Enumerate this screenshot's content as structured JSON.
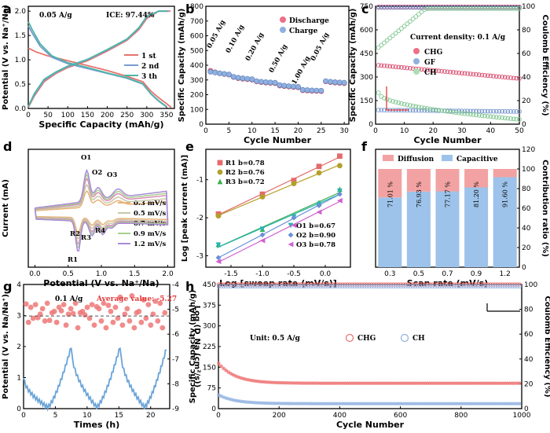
{
  "figure": {
    "panels": [
      "a",
      "b",
      "c",
      "d",
      "e",
      "f",
      "g",
      "h"
    ]
  },
  "chart_data": [
    {
      "panel": "a",
      "type": "line",
      "xlabel": "Specific Capacity (mAh/g)",
      "ylabel": "Potential (V vs. Na⁺/Na)",
      "xlim": [
        0,
        370
      ],
      "ylim": [
        0,
        2.1
      ],
      "xticks": [
        "0",
        "50",
        "100",
        "150",
        "200",
        "250",
        "300",
        "350"
      ],
      "yticks": [
        "0.0",
        "0.5",
        "1.0",
        "1.5",
        "2.0"
      ],
      "annotations": [
        "0.05 A/g",
        "ICE: 97.44%"
      ],
      "series": [
        {
          "name": "1 st",
          "color": "#e8736f",
          "discharge": [
            [
              0,
              1.24
            ],
            [
              20,
              1.16
            ],
            [
              50,
              1.08
            ],
            [
              100,
              0.98
            ],
            [
              150,
              0.88
            ],
            [
              200,
              0.78
            ],
            [
              250,
              0.66
            ],
            [
              290,
              0.55
            ],
            [
              310,
              0.36
            ],
            [
              330,
              0.22
            ],
            [
              350,
              0.1
            ],
            [
              362,
              0.02
            ]
          ],
          "charge": [
            [
              0,
              0.02
            ],
            [
              15,
              0.25
            ],
            [
              40,
              0.55
            ],
            [
              70,
              0.72
            ],
            [
              100,
              0.84
            ],
            [
              150,
              0.98
            ],
            [
              200,
              1.18
            ],
            [
              250,
              1.4
            ],
            [
              280,
              1.62
            ],
            [
              300,
              1.85
            ],
            [
              330,
              2.0
            ],
            [
              360,
              2.0
            ]
          ]
        },
        {
          "name": "2 nd",
          "color": "#7a9bd1",
          "discharge": [
            [
              0,
              1.7
            ],
            [
              10,
              1.55
            ],
            [
              30,
              1.28
            ],
            [
              60,
              1.05
            ],
            [
              100,
              0.92
            ],
            [
              150,
              0.82
            ],
            [
              200,
              0.72
            ],
            [
              250,
              0.62
            ],
            [
              290,
              0.5
            ],
            [
              310,
              0.3
            ],
            [
              330,
              0.15
            ],
            [
              350,
              0.03
            ]
          ],
          "charge": [
            [
              0,
              0.03
            ],
            [
              15,
              0.28
            ],
            [
              40,
              0.58
            ],
            [
              70,
              0.74
            ],
            [
              100,
              0.86
            ],
            [
              150,
              1.0
            ],
            [
              200,
              1.2
            ],
            [
              250,
              1.42
            ],
            [
              280,
              1.65
            ],
            [
              300,
              1.88
            ],
            [
              330,
              2.0
            ],
            [
              355,
              2.0
            ]
          ]
        },
        {
          "name": "3 th",
          "color": "#4fb5a6",
          "discharge": [
            [
              0,
              1.78
            ],
            [
              10,
              1.62
            ],
            [
              30,
              1.33
            ],
            [
              60,
              1.08
            ],
            [
              100,
              0.94
            ],
            [
              150,
              0.84
            ],
            [
              200,
              0.73
            ],
            [
              250,
              0.63
            ],
            [
              290,
              0.51
            ],
            [
              310,
              0.31
            ],
            [
              330,
              0.16
            ],
            [
              350,
              0.04
            ]
          ],
          "charge": [
            [
              0,
              0.04
            ],
            [
              15,
              0.3
            ],
            [
              40,
              0.6
            ],
            [
              70,
              0.75
            ],
            [
              100,
              0.87
            ],
            [
              150,
              1.01
            ],
            [
              200,
              1.21
            ],
            [
              250,
              1.43
            ],
            [
              280,
              1.66
            ],
            [
              300,
              1.89
            ],
            [
              330,
              2.0
            ],
            [
              352,
              2.0
            ]
          ]
        }
      ]
    },
    {
      "panel": "b",
      "type": "scatter",
      "xlabel": "Cycle Number",
      "ylabel": "Specific Capacity (mAh/g)",
      "xlim": [
        0,
        31
      ],
      "ylim": [
        0,
        800
      ],
      "xticks": [
        "0",
        "5",
        "10",
        "15",
        "20",
        "25",
        "30"
      ],
      "yticks": [
        "0",
        "100",
        "200",
        "300",
        "400",
        "500",
        "600",
        "700",
        "800"
      ],
      "rate_labels": [
        "0.05 A/g",
        "0.10 A/g",
        "0.20 A/g",
        "0.50 A/g",
        "1.00 A/g",
        "0.05 A/g"
      ],
      "series": [
        {
          "name": "Discharge",
          "color": "#ee6f86",
          "values": [
            362,
            352,
            345,
            340,
            336,
            320,
            312,
            308,
            305,
            302,
            290,
            285,
            282,
            280,
            278,
            262,
            258,
            255,
            252,
            250,
            230,
            228,
            226,
            225,
            224,
            290,
            285,
            282,
            280,
            278
          ]
        },
        {
          "name": "Charge",
          "color": "#8fb0e0",
          "values": [
            350,
            345,
            340,
            336,
            332,
            316,
            310,
            306,
            303,
            300,
            287,
            283,
            280,
            278,
            276,
            260,
            256,
            253,
            250,
            248,
            228,
            226,
            224,
            223,
            222,
            287,
            283,
            280,
            278,
            276
          ]
        }
      ]
    },
    {
      "panel": "c",
      "type": "scatter",
      "xlabel": "Cycle Number",
      "ylabel": "Specific Capacity (mAh/g)",
      "ylabel_right": "Coulomb Efficiency (%)",
      "xlim": [
        0,
        50
      ],
      "ylim": [
        0,
        750
      ],
      "ylim_right": [
        0,
        100
      ],
      "xticks": [
        "0",
        "10",
        "20",
        "30",
        "40",
        "50"
      ],
      "yticks": [
        "0",
        "150",
        "300",
        "450",
        "600",
        "750"
      ],
      "yticks_right": [
        "0",
        "20",
        "40",
        "60",
        "80",
        "100"
      ],
      "annotation": "Current density: 0.1 A/g",
      "series": [
        {
          "name": "CHG",
          "color": "#ee6f86",
          "capacity_start": 375,
          "capacity_end": 290,
          "ce": 99.5
        },
        {
          "name": "GF",
          "color": "#8fb0e0",
          "capacity_start": 90,
          "capacity_end": 80,
          "ce": 99.0
        },
        {
          "name": "CH",
          "color": "#a7e0b4",
          "capacity_start": 200,
          "capacity_end": 30,
          "ce_start": 65,
          "ce_end": 98
        }
      ]
    },
    {
      "panel": "d",
      "type": "line",
      "xlabel": "Potential (V vs. Na⁺/Na)",
      "ylabel": "Current (mA)",
      "xlim": [
        -0.1,
        2.1
      ],
      "ylim": [
        -1.0,
        1.2
      ],
      "xticks": [
        "0.0",
        "0.5",
        "1.0",
        "1.5",
        "2.0"
      ],
      "peak_labels": [
        "O1",
        "O2",
        "O3",
        "R1",
        "R2",
        "R3",
        "R4"
      ],
      "series": [
        {
          "name": "0.3 mV/s",
          "color": "#e8b27a",
          "scale": 0.55
        },
        {
          "name": "0.5 mV/s",
          "color": "#c8c8a8",
          "scale": 0.7
        },
        {
          "name": "0.7 mV/s",
          "color": "#d98bb8",
          "scale": 0.85
        },
        {
          "name": "0.9 mV/s",
          "color": "#a7d08b",
          "scale": 0.95
        },
        {
          "name": "1.2 mV/s",
          "color": "#a98bd8",
          "scale": 1.05
        }
      ]
    },
    {
      "panel": "e",
      "type": "scatter",
      "xlabel": "Log [sweep rate (mV/s)]",
      "ylabel": "Log [peak current (mA)]",
      "xlim": [
        -1.9,
        0.4
      ],
      "ylim": [
        -3.3,
        -0.2
      ],
      "xticks": [
        "-1.5",
        "-1.0",
        "-0.5",
        "0.0"
      ],
      "yticks": [
        "-3",
        "-2",
        "-1"
      ],
      "x": [
        -1.7,
        -1.0,
        -0.5,
        -0.1,
        0.23
      ],
      "series": [
        {
          "name": "R1 b=0.78",
          "color": "#e46a6a",
          "marker": "square",
          "values": [
            -1.9,
            -1.38,
            -1.02,
            -0.65,
            -0.38
          ]
        },
        {
          "name": "R2 b=0.76",
          "color": "#b3a02a",
          "marker": "circle",
          "values": [
            -1.95,
            -1.45,
            -1.1,
            -0.82,
            -0.63
          ]
        },
        {
          "name": "R3 b=0.72",
          "color": "#3aaf50",
          "marker": "triangle",
          "values": [
            -2.7,
            -2.3,
            -1.95,
            -1.6,
            -1.25
          ]
        },
        {
          "name": "O1 b=0.67",
          "color": "#2ab3b3",
          "marker": "triangle-down",
          "values": [
            -2.72,
            -2.3,
            -1.98,
            -1.65,
            -1.3
          ]
        },
        {
          "name": "O2 b=0.90",
          "color": "#6a8fd8",
          "marker": "diamond",
          "values": [
            -3.05,
            -2.45,
            -2.0,
            -1.68,
            -1.38
          ]
        },
        {
          "name": "O3 b=0.78",
          "color": "#d060d0",
          "marker": "triangle-left",
          "values": [
            -3.15,
            -2.6,
            -2.2,
            -1.85,
            -1.55
          ]
        }
      ]
    },
    {
      "panel": "f",
      "type": "bar",
      "xlabel": "Scan rate (mV/s)",
      "ylabel": "Contribution ratio (%)",
      "ylim": [
        0,
        120
      ],
      "yticks": [
        "0",
        "20",
        "40",
        "60",
        "80",
        "100",
        "120"
      ],
      "categories": [
        "0.3",
        "0.5",
        "0.7",
        "0.9",
        "1.2"
      ],
      "series": [
        {
          "name": "Capacitive",
          "color": "#9dc3ea",
          "values": [
            71.01,
            76.93,
            77.17,
            81.2,
            91.6
          ]
        },
        {
          "name": "Diffusion",
          "color": "#f2a2a2",
          "values": [
            28.99,
            23.07,
            22.83,
            18.8,
            8.4
          ]
        }
      ],
      "bar_labels": [
        "71.01 %",
        "76.93 %",
        "77.17 %",
        "81.20 %",
        "91.60 %"
      ]
    },
    {
      "panel": "g",
      "type": "scatter",
      "xlabel": "Times (h)",
      "ylabel": "Potential (V vs. Na/Na⁺)",
      "ylabel_right": "Log (D_Na (cm²/s))",
      "xlim": [
        0,
        23
      ],
      "ylim": [
        0,
        4
      ],
      "ylim_right": [
        -9,
        -4
      ],
      "xticks": [
        "0",
        "5",
        "10",
        "15",
        "20"
      ],
      "yticks": [
        "0",
        "1",
        "2",
        "3",
        "4"
      ],
      "yticks_right": [
        "-9",
        "-8",
        "-7",
        "-6",
        "-5",
        "-4"
      ],
      "annotations": [
        "0.1 A/g",
        "Average value: -5.27"
      ],
      "reference_line": -5.27,
      "series": [
        {
          "name": "Potential",
          "color": "#6aa3d8"
        },
        {
          "name": "Log D",
          "color": "#ee7777"
        }
      ]
    },
    {
      "panel": "h",
      "type": "scatter",
      "xlabel": "Cycle Number",
      "ylabel": "Specific Capacity (mAh/g)",
      "ylabel_right": "Coulomb Efficiency (%)",
      "xlim": [
        0,
        1000
      ],
      "ylim": [
        0,
        450
      ],
      "ylim_right": [
        0,
        100
      ],
      "xticks": [
        "0",
        "200",
        "400",
        "600",
        "800",
        "1000"
      ],
      "yticks": [
        "0",
        "75",
        "150",
        "225",
        "300",
        "375",
        "450"
      ],
      "yticks_right": [
        "0",
        "20",
        "40",
        "60",
        "80",
        "100"
      ],
      "annotation": "Unit: 0.5 A/g",
      "series": [
        {
          "name": "CHG",
          "color": "#ee6f6f",
          "capacity_start": 165,
          "capacity_end": 92,
          "ce": 100
        },
        {
          "name": "CH",
          "color": "#8fb0e0",
          "capacity_start": 50,
          "capacity_end": 18,
          "ce": 99
        }
      ]
    }
  ]
}
